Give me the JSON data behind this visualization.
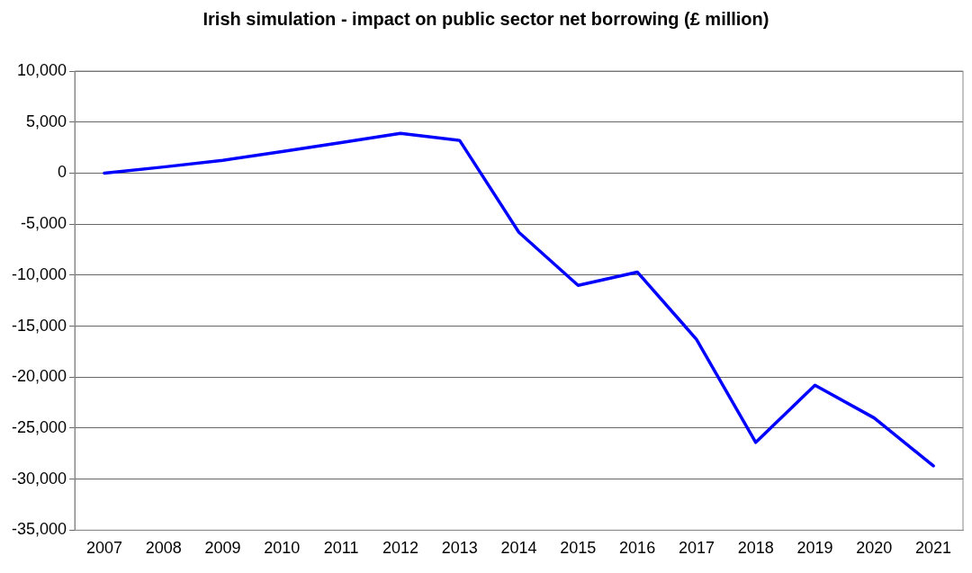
{
  "chart_data": {
    "type": "line",
    "title": "Irish simulation - impact on public sector net borrowing (£ million)",
    "categories": [
      "2007",
      "2008",
      "2009",
      "2010",
      "2011",
      "2012",
      "2013",
      "2014",
      "2015",
      "2016",
      "2017",
      "2018",
      "2019",
      "2020",
      "2021"
    ],
    "series": [
      {
        "color": "#0000ff",
        "values": [
          0,
          600,
          1250,
          2100,
          3000,
          3900,
          3200,
          -5800,
          -11000,
          -9700,
          -16300,
          -26400,
          -20800,
          -24000,
          -28700
        ]
      }
    ],
    "ylim": [
      -35000,
      10000
    ],
    "yticks": [
      {
        "value": -35000,
        "label": "-35,000"
      },
      {
        "value": -30000,
        "label": "-30,000"
      },
      {
        "value": -25000,
        "label": "-25,000"
      },
      {
        "value": -20000,
        "label": "-20,000"
      },
      {
        "value": -15000,
        "label": "-15,000"
      },
      {
        "value": -10000,
        "label": "-10,000"
      },
      {
        "value": -5000,
        "label": "-5,000"
      },
      {
        "value": 0,
        "label": "0"
      },
      {
        "value": 5000,
        "label": "5,000"
      },
      {
        "value": 10000,
        "label": "10,000"
      }
    ],
    "grid": "y",
    "legend": false,
    "marker": "none",
    "line_style": "solid"
  }
}
